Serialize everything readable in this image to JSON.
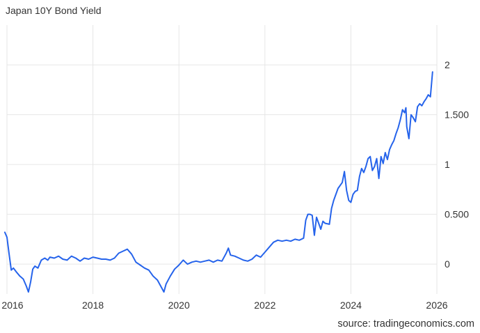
{
  "title": "Japan 10Y Bond Yield",
  "source": "source: tradingeconomics.com",
  "chart_data": {
    "type": "line",
    "title": "Japan 10Y Bond Yield",
    "xlabel": "",
    "ylabel": "",
    "xlim": [
      2016.0,
      2026.0
    ],
    "ylim": [
      -0.3,
      2.4
    ],
    "grid": true,
    "legend": "none",
    "line_color": "#2563eb",
    "x_ticks": [
      2016,
      2018,
      2020,
      2022,
      2024,
      2026
    ],
    "x_tick_labels": [
      "2016",
      "2018",
      "2020",
      "2022",
      "2024",
      "2026"
    ],
    "y_ticks": [
      0,
      0.5,
      1,
      1.5,
      2
    ],
    "y_tick_labels": [
      "0",
      "0.500",
      "1",
      "1.500",
      "2"
    ],
    "series": [
      {
        "x": [
          2015.95,
          2016.0,
          2016.05,
          2016.1,
          2016.15,
          2016.22,
          2016.3,
          2016.38,
          2016.45,
          2016.5,
          2016.55,
          2016.6,
          2016.65,
          2016.72,
          2016.8,
          2016.88,
          2016.95,
          2017.0,
          2017.1,
          2017.2,
          2017.3,
          2017.4,
          2017.5,
          2017.6,
          2017.7,
          2017.8,
          2017.9,
          2018.0,
          2018.1,
          2018.2,
          2018.3,
          2018.4,
          2018.5,
          2018.6,
          2018.7,
          2018.8,
          2018.9,
          2019.0,
          2019.1,
          2019.2,
          2019.3,
          2019.4,
          2019.5,
          2019.6,
          2019.65,
          2019.7,
          2019.8,
          2019.9,
          2020.0,
          2020.1,
          2020.15,
          2020.2,
          2020.3,
          2020.4,
          2020.5,
          2020.6,
          2020.7,
          2020.8,
          2020.9,
          2021.0,
          2021.1,
          2021.15,
          2021.2,
          2021.3,
          2021.4,
          2021.5,
          2021.6,
          2021.7,
          2021.8,
          2021.9,
          2022.0,
          2022.1,
          2022.2,
          2022.3,
          2022.4,
          2022.5,
          2022.6,
          2022.7,
          2022.8,
          2022.9,
          2022.95,
          2023.0,
          2023.05,
          2023.1,
          2023.15,
          2023.2,
          2023.25,
          2023.3,
          2023.35,
          2023.4,
          2023.5,
          2023.55,
          2023.6,
          2023.7,
          2023.8,
          2023.85,
          2023.9,
          2023.95,
          2024.0,
          2024.05,
          2024.1,
          2024.15,
          2024.2,
          2024.25,
          2024.3,
          2024.35,
          2024.4,
          2024.45,
          2024.5,
          2024.55,
          2024.6,
          2024.65,
          2024.7,
          2024.75,
          2024.8,
          2024.85,
          2024.9,
          2024.95,
          2025.0,
          2025.05,
          2025.1,
          2025.15,
          2025.2,
          2025.25,
          2025.28,
          2025.3,
          2025.35,
          2025.4,
          2025.45,
          2025.5,
          2025.55,
          2025.6,
          2025.65,
          2025.7,
          2025.75,
          2025.8,
          2025.85,
          2025.9
        ],
        "y": [
          0.32,
          0.27,
          0.1,
          -0.06,
          -0.04,
          -0.08,
          -0.12,
          -0.15,
          -0.22,
          -0.28,
          -0.18,
          -0.05,
          -0.02,
          -0.04,
          0.04,
          0.06,
          0.04,
          0.07,
          0.06,
          0.08,
          0.05,
          0.04,
          0.08,
          0.06,
          0.03,
          0.06,
          0.05,
          0.07,
          0.06,
          0.05,
          0.05,
          0.04,
          0.06,
          0.11,
          0.13,
          0.15,
          0.1,
          0.02,
          -0.01,
          -0.04,
          -0.06,
          -0.12,
          -0.16,
          -0.24,
          -0.28,
          -0.2,
          -0.12,
          -0.05,
          -0.01,
          0.04,
          0.02,
          0.0,
          0.02,
          0.03,
          0.02,
          0.03,
          0.04,
          0.02,
          0.04,
          0.03,
          0.11,
          0.16,
          0.09,
          0.08,
          0.06,
          0.04,
          0.03,
          0.05,
          0.09,
          0.07,
          0.12,
          0.17,
          0.22,
          0.24,
          0.23,
          0.24,
          0.23,
          0.25,
          0.24,
          0.26,
          0.44,
          0.5,
          0.5,
          0.49,
          0.29,
          0.47,
          0.41,
          0.35,
          0.43,
          0.41,
          0.4,
          0.56,
          0.64,
          0.76,
          0.82,
          0.93,
          0.74,
          0.64,
          0.62,
          0.7,
          0.73,
          0.74,
          0.88,
          0.96,
          0.92,
          0.98,
          1.06,
          1.08,
          0.94,
          0.98,
          1.06,
          0.86,
          1.08,
          1.01,
          1.12,
          1.05,
          1.15,
          1.2,
          1.24,
          1.31,
          1.37,
          1.45,
          1.55,
          1.52,
          1.57,
          1.38,
          1.26,
          1.5,
          1.47,
          1.43,
          1.58,
          1.61,
          1.59,
          1.63,
          1.66,
          1.7,
          1.68,
          1.93
        ]
      }
    ]
  }
}
